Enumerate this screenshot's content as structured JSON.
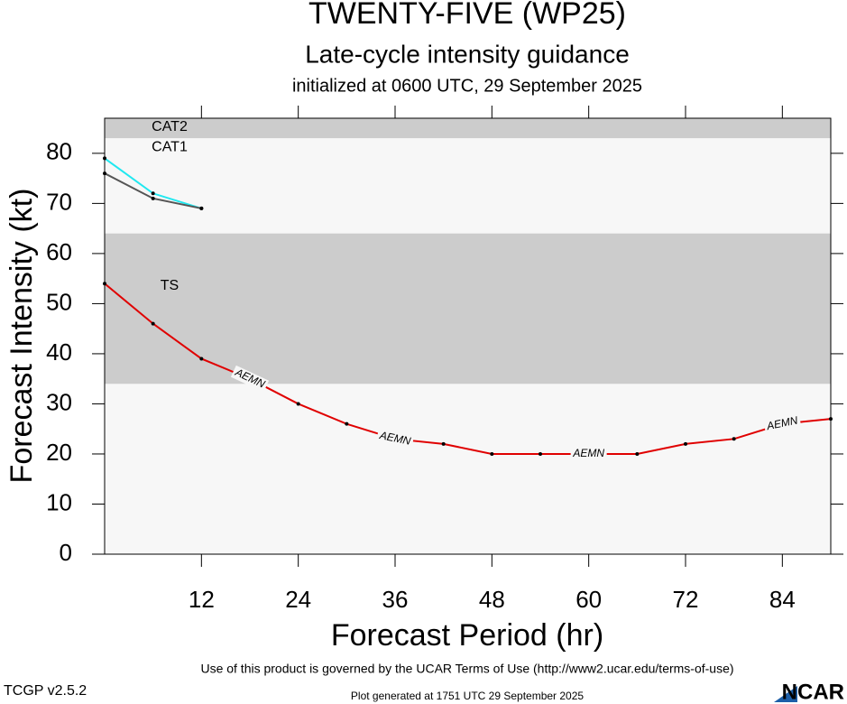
{
  "chart_data": {
    "type": "line",
    "title": "TWENTY-FIVE (WP25)",
    "subtitle": "Late-cycle intensity guidance",
    "init_text": "initialized at 0600 UTC, 29 September 2025",
    "y_label": "Forecast Intensity (kt)",
    "x_label": "Forecast Period (hr)",
    "xlim": [
      0,
      90
    ],
    "xticks": [
      12,
      24,
      36,
      48,
      60,
      72,
      84
    ],
    "ylim": [
      0,
      87
    ],
    "yticks": [
      0,
      10,
      20,
      30,
      40,
      50,
      60,
      70,
      80
    ],
    "bands": [
      {
        "label": "CAT2",
        "from": 83,
        "to": 87,
        "color": "#cccccc"
      },
      {
        "label": "CAT1",
        "from": 64,
        "to": 83,
        "color": "#f7f7f7"
      },
      {
        "label": "TS",
        "from": 34,
        "to": 64,
        "color": "#cccccc"
      }
    ],
    "series": [
      {
        "name": "AEMN",
        "color": "#e00000",
        "x": [
          0,
          6,
          12,
          18,
          24,
          30,
          36,
          42,
          48,
          54,
          60,
          66,
          72,
          78,
          84,
          90
        ],
        "values": [
          54,
          46,
          39,
          35,
          30,
          26,
          23,
          22,
          20,
          20,
          20,
          20,
          22,
          23,
          26,
          27
        ]
      },
      {
        "color": "#20e8f0",
        "x": [
          0,
          6,
          12
        ],
        "values": [
          79,
          72,
          69
        ]
      },
      {
        "color": "#555555",
        "x": [
          0,
          6,
          12
        ],
        "values": [
          76,
          71,
          69
        ]
      }
    ],
    "footer": {
      "terms": "Use of this product is governed by the UCAR Terms of Use (http://www2.ucar.edu/terms-of-use)",
      "version": "TCGP v2.5.2",
      "generated": "Plot generated at 1751 UTC   29 September 2025",
      "logo": "NCAR"
    }
  }
}
